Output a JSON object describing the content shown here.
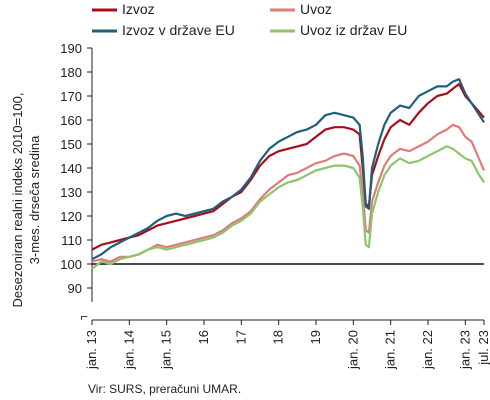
{
  "chart_data": {
    "type": "line",
    "ylabel_lines": [
      "Desezoniran realni indeks 2010=100,",
      "3-mes. drseča sredina"
    ],
    "ylim": [
      80,
      190
    ],
    "y_ticks": [
      90,
      100,
      110,
      120,
      130,
      140,
      150,
      160,
      170,
      180,
      190
    ],
    "x_tick_labels": [
      "jan. 13",
      "jan. 14",
      "jan. 15",
      "16",
      "17",
      "18",
      "19",
      "jan. 20",
      "jan. 21",
      "jan. 22",
      "jan. 23",
      "jul. 23"
    ],
    "x_tick_months": [
      0,
      12,
      24,
      36,
      48,
      60,
      72,
      84,
      96,
      108,
      120,
      126
    ],
    "x_range_months": [
      0,
      126
    ],
    "x_start": "2013-01",
    "y_break_symbol": "⌐",
    "reference_line": 100,
    "grid": false,
    "legend_position": "top",
    "source": "Vir: SURS, preračuni UMAR.",
    "series": [
      {
        "name": "Izvoz",
        "color": "#a50f1c",
        "points": [
          [
            0,
            106
          ],
          [
            3,
            108
          ],
          [
            6,
            109
          ],
          [
            9,
            110
          ],
          [
            12,
            111
          ],
          [
            15,
            112
          ],
          [
            18,
            114
          ],
          [
            21,
            116
          ],
          [
            24,
            117
          ],
          [
            27,
            118
          ],
          [
            30,
            119
          ],
          [
            33,
            120
          ],
          [
            36,
            121
          ],
          [
            39,
            122
          ],
          [
            42,
            125
          ],
          [
            45,
            128
          ],
          [
            48,
            130
          ],
          [
            51,
            135
          ],
          [
            54,
            141
          ],
          [
            57,
            145
          ],
          [
            60,
            147
          ],
          [
            63,
            148
          ],
          [
            66,
            149
          ],
          [
            69,
            150
          ],
          [
            72,
            153
          ],
          [
            75,
            156
          ],
          [
            78,
            157
          ],
          [
            81,
            157
          ],
          [
            84,
            156
          ],
          [
            86,
            154
          ],
          [
            87,
            140
          ],
          [
            88,
            125
          ],
          [
            89,
            124
          ],
          [
            90,
            137
          ],
          [
            92,
            145
          ],
          [
            94,
            152
          ],
          [
            96,
            157
          ],
          [
            99,
            160
          ],
          [
            102,
            158
          ],
          [
            105,
            163
          ],
          [
            108,
            167
          ],
          [
            111,
            170
          ],
          [
            114,
            171
          ],
          [
            116,
            173
          ],
          [
            118,
            175
          ],
          [
            120,
            170
          ],
          [
            122,
            167
          ],
          [
            124,
            164
          ],
          [
            126,
            161
          ]
        ]
      },
      {
        "name": "Uvoz",
        "color": "#e07b7b",
        "points": [
          [
            0,
            101
          ],
          [
            3,
            102
          ],
          [
            6,
            101
          ],
          [
            9,
            103
          ],
          [
            12,
            103
          ],
          [
            15,
            104
          ],
          [
            18,
            106
          ],
          [
            21,
            108
          ],
          [
            24,
            107
          ],
          [
            27,
            108
          ],
          [
            30,
            109
          ],
          [
            33,
            110
          ],
          [
            36,
            111
          ],
          [
            39,
            112
          ],
          [
            42,
            114
          ],
          [
            45,
            117
          ],
          [
            48,
            119
          ],
          [
            51,
            122
          ],
          [
            54,
            127
          ],
          [
            57,
            131
          ],
          [
            60,
            134
          ],
          [
            63,
            137
          ],
          [
            66,
            138
          ],
          [
            69,
            140
          ],
          [
            72,
            142
          ],
          [
            75,
            143
          ],
          [
            78,
            145
          ],
          [
            81,
            146
          ],
          [
            84,
            145
          ],
          [
            86,
            141
          ],
          [
            87,
            130
          ],
          [
            88,
            114
          ],
          [
            89,
            113
          ],
          [
            90,
            126
          ],
          [
            92,
            134
          ],
          [
            94,
            141
          ],
          [
            96,
            145
          ],
          [
            99,
            148
          ],
          [
            102,
            147
          ],
          [
            105,
            149
          ],
          [
            108,
            151
          ],
          [
            111,
            154
          ],
          [
            114,
            156
          ],
          [
            116,
            158
          ],
          [
            118,
            157
          ],
          [
            120,
            153
          ],
          [
            122,
            151
          ],
          [
            124,
            145
          ],
          [
            126,
            139
          ]
        ]
      },
      {
        "name": "Izvoz v države EU",
        "color": "#1f5f7a",
        "points": [
          [
            0,
            102
          ],
          [
            3,
            104
          ],
          [
            6,
            107
          ],
          [
            9,
            109
          ],
          [
            12,
            111
          ],
          [
            15,
            113
          ],
          [
            18,
            115
          ],
          [
            21,
            118
          ],
          [
            24,
            120
          ],
          [
            27,
            121
          ],
          [
            30,
            120
          ],
          [
            33,
            121
          ],
          [
            36,
            122
          ],
          [
            39,
            123
          ],
          [
            42,
            126
          ],
          [
            45,
            128
          ],
          [
            48,
            131
          ],
          [
            51,
            136
          ],
          [
            54,
            143
          ],
          [
            57,
            148
          ],
          [
            60,
            151
          ],
          [
            63,
            153
          ],
          [
            66,
            155
          ],
          [
            69,
            156
          ],
          [
            72,
            158
          ],
          [
            75,
            162
          ],
          [
            78,
            163
          ],
          [
            81,
            162
          ],
          [
            84,
            161
          ],
          [
            86,
            158
          ],
          [
            87,
            145
          ],
          [
            88,
            124
          ],
          [
            89,
            123
          ],
          [
            90,
            140
          ],
          [
            92,
            150
          ],
          [
            94,
            158
          ],
          [
            96,
            163
          ],
          [
            99,
            166
          ],
          [
            102,
            165
          ],
          [
            105,
            170
          ],
          [
            108,
            172
          ],
          [
            111,
            174
          ],
          [
            114,
            174
          ],
          [
            116,
            176
          ],
          [
            118,
            177
          ],
          [
            120,
            171
          ],
          [
            122,
            167
          ],
          [
            124,
            163
          ],
          [
            126,
            159
          ]
        ]
      },
      {
        "name": "Uvoz iz držav EU",
        "color": "#8cc56b",
        "points": [
          [
            0,
            98
          ],
          [
            3,
            101
          ],
          [
            6,
            100
          ],
          [
            9,
            102
          ],
          [
            12,
            103
          ],
          [
            15,
            104
          ],
          [
            18,
            106
          ],
          [
            21,
            107
          ],
          [
            24,
            106
          ],
          [
            27,
            107
          ],
          [
            30,
            108
          ],
          [
            33,
            109
          ],
          [
            36,
            110
          ],
          [
            39,
            111
          ],
          [
            42,
            113
          ],
          [
            45,
            116
          ],
          [
            48,
            118
          ],
          [
            51,
            121
          ],
          [
            54,
            126
          ],
          [
            57,
            129
          ],
          [
            60,
            132
          ],
          [
            63,
            134
          ],
          [
            66,
            135
          ],
          [
            69,
            137
          ],
          [
            72,
            139
          ],
          [
            75,
            140
          ],
          [
            78,
            141
          ],
          [
            81,
            141
          ],
          [
            84,
            140
          ],
          [
            86,
            136
          ],
          [
            87,
            124
          ],
          [
            88,
            108
          ],
          [
            89,
            107
          ],
          [
            90,
            121
          ],
          [
            92,
            130
          ],
          [
            94,
            137
          ],
          [
            96,
            141
          ],
          [
            99,
            144
          ],
          [
            102,
            142
          ],
          [
            105,
            143
          ],
          [
            108,
            145
          ],
          [
            111,
            147
          ],
          [
            114,
            149
          ],
          [
            116,
            148
          ],
          [
            118,
            146
          ],
          [
            120,
            144
          ],
          [
            122,
            143
          ],
          [
            124,
            138
          ],
          [
            126,
            134
          ]
        ]
      }
    ]
  }
}
